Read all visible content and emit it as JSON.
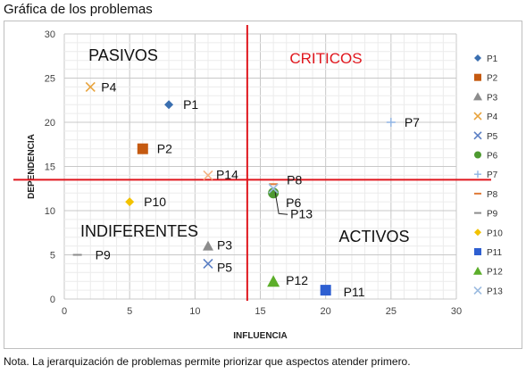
{
  "figure_title": "Gráfica de los problemas",
  "note": "Nota. La jerarquización de problemas permite priorizar que aspectos atender primero.",
  "chart_data": {
    "type": "scatter",
    "xlabel": "INFLUENCIA",
    "ylabel": "DEPENDENCIA",
    "xlim": [
      0,
      30
    ],
    "ylim": [
      0,
      30
    ],
    "xticks": [
      0,
      5,
      10,
      15,
      20,
      25,
      30
    ],
    "yticks": [
      0,
      5,
      10,
      15,
      20,
      25,
      30
    ],
    "grid": true,
    "legend_position": "right",
    "threshold_lines": {
      "x": 14,
      "y": 13.5,
      "color": "#e0161d"
    },
    "quadrant_labels": [
      {
        "text": "PASIVOS",
        "color": "#111111"
      },
      {
        "text": "CRITICOS",
        "color": "#e0161d"
      },
      {
        "text": "INDIFERENTES",
        "color": "#111111"
      },
      {
        "text": "ACTIVOS",
        "color": "#111111"
      }
    ],
    "series": [
      {
        "name": "P1",
        "x": 8,
        "y": 22,
        "marker": "diamond",
        "color": "#3a6fb0"
      },
      {
        "name": "P2",
        "x": 6,
        "y": 17,
        "marker": "square",
        "color": "#c55a11"
      },
      {
        "name": "P3",
        "x": 11,
        "y": 6,
        "marker": "triangle",
        "color": "#8c8c8c"
      },
      {
        "name": "P4",
        "x": 2,
        "y": 24,
        "marker": "x",
        "color": "#e8a33d"
      },
      {
        "name": "P5",
        "x": 11,
        "y": 4,
        "marker": "x",
        "color": "#5b7fc4"
      },
      {
        "name": "P6",
        "x": 16,
        "y": 12,
        "marker": "circle",
        "color": "#4e9a31"
      },
      {
        "name": "P7",
        "x": 25,
        "y": 20,
        "marker": "plus",
        "color": "#8fb4e3"
      },
      {
        "name": "P8",
        "x": 16,
        "y": 13,
        "marker": "dash",
        "color": "#e07b39"
      },
      {
        "name": "P9",
        "x": 1,
        "y": 5,
        "marker": "dash",
        "color": "#8c8c8c"
      },
      {
        "name": "P10",
        "x": 5,
        "y": 11,
        "marker": "diamond",
        "color": "#f2c200"
      },
      {
        "name": "P11",
        "x": 20,
        "y": 1,
        "marker": "square",
        "color": "#2e5fd1"
      },
      {
        "name": "P12",
        "x": 16,
        "y": 2,
        "marker": "triangle",
        "color": "#5cae2a"
      },
      {
        "name": "P13",
        "x": 16,
        "y": 12.5,
        "marker": "x",
        "color": "#9bbbe0"
      },
      {
        "name": "P14",
        "x": 11,
        "y": 14,
        "marker": "x",
        "color": "#f4b183"
      }
    ]
  }
}
